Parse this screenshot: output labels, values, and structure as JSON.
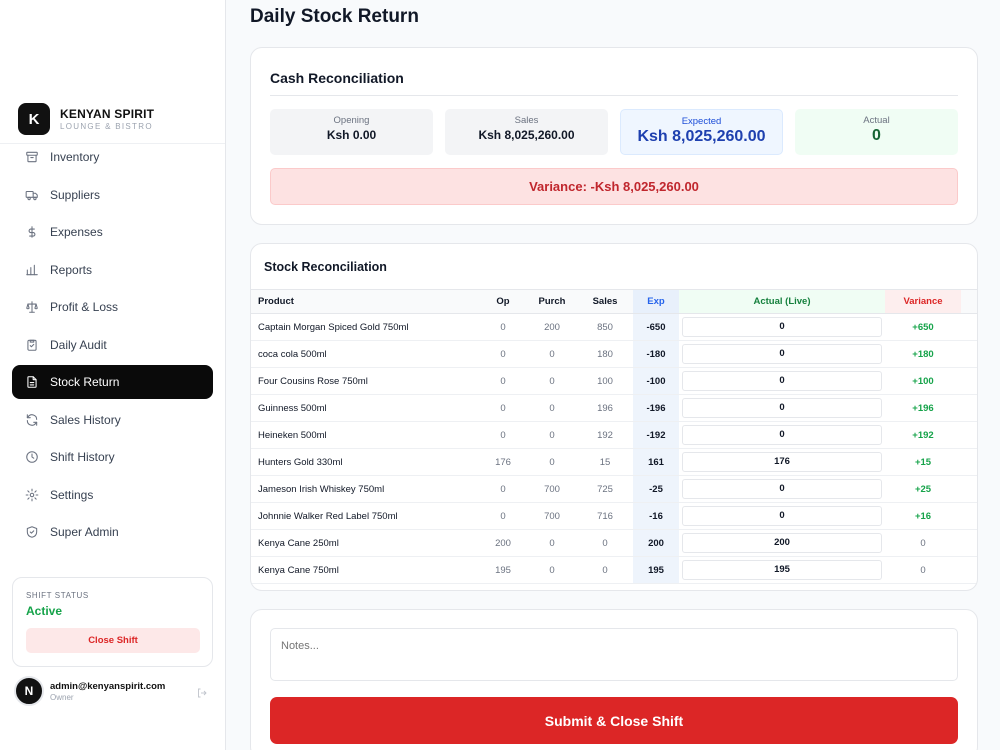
{
  "brand": {
    "initial": "K",
    "name": "KENYAN SPIRIT",
    "subtitle": "LOUNGE & BISTRO"
  },
  "nav": [
    {
      "label": "Inventory",
      "icon": "box-icon"
    },
    {
      "label": "Suppliers",
      "icon": "truck-icon"
    },
    {
      "label": "Expenses",
      "icon": "dollar-icon"
    },
    {
      "label": "Reports",
      "icon": "bar-chart-icon"
    },
    {
      "label": "Profit & Loss",
      "icon": "scale-icon"
    },
    {
      "label": "Daily Audit",
      "icon": "clipboard-icon"
    },
    {
      "label": "Stock Return",
      "icon": "file-icon",
      "active": true
    },
    {
      "label": "Sales History",
      "icon": "refresh-icon"
    },
    {
      "label": "Shift History",
      "icon": "clock-icon"
    },
    {
      "label": "Settings",
      "icon": "gear-icon"
    },
    {
      "label": "Super Admin",
      "icon": "shield-icon"
    }
  ],
  "shift": {
    "label": "SHIFT STATUS",
    "status": "Active",
    "close_label": "Close Shift"
  },
  "user": {
    "initial": "N",
    "email": "admin@kenyanspirit.com",
    "role": "Owner"
  },
  "page": {
    "title": "Daily Stock Return"
  },
  "cash": {
    "title": "Cash Reconciliation",
    "opening": {
      "label": "Opening",
      "value": "Ksh 0.00"
    },
    "sales": {
      "label": "Sales",
      "value": "Ksh 8,025,260.00"
    },
    "expected": {
      "label": "Expected",
      "value": "Ksh 8,025,260.00"
    },
    "actual": {
      "label": "Actual",
      "value": "0"
    },
    "variance": "Variance: -Ksh 8,025,260.00"
  },
  "stock": {
    "title": "Stock Reconciliation",
    "headers": {
      "product": "Product",
      "op": "Op",
      "purch": "Purch",
      "sales": "Sales",
      "exp": "Exp",
      "actual": "Actual (Live)",
      "variance": "Variance"
    },
    "rows": [
      {
        "product": "Captain Morgan Spiced Gold 750ml",
        "op": "0",
        "purch": "200",
        "sales": "850",
        "exp": "-650",
        "actual": "0",
        "variance": "+650"
      },
      {
        "product": "coca cola 500ml",
        "op": "0",
        "purch": "0",
        "sales": "180",
        "exp": "-180",
        "actual": "0",
        "variance": "+180"
      },
      {
        "product": "Four Cousins Rose 750ml",
        "op": "0",
        "purch": "0",
        "sales": "100",
        "exp": "-100",
        "actual": "0",
        "variance": "+100"
      },
      {
        "product": "Guinness 500ml",
        "op": "0",
        "purch": "0",
        "sales": "196",
        "exp": "-196",
        "actual": "0",
        "variance": "+196"
      },
      {
        "product": "Heineken 500ml",
        "op": "0",
        "purch": "0",
        "sales": "192",
        "exp": "-192",
        "actual": "0",
        "variance": "+192"
      },
      {
        "product": "Hunters Gold 330ml",
        "op": "176",
        "purch": "0",
        "sales": "15",
        "exp": "161",
        "actual": "176",
        "variance": "+15"
      },
      {
        "product": "Jameson Irish Whiskey 750ml",
        "op": "0",
        "purch": "700",
        "sales": "725",
        "exp": "-25",
        "actual": "0",
        "variance": "+25"
      },
      {
        "product": "Johnnie Walker Red Label 750ml",
        "op": "0",
        "purch": "700",
        "sales": "716",
        "exp": "-16",
        "actual": "0",
        "variance": "+16"
      },
      {
        "product": "Kenya Cane 250ml",
        "op": "200",
        "purch": "0",
        "sales": "0",
        "exp": "200",
        "actual": "200",
        "variance": "0"
      },
      {
        "product": "Kenya Cane 750ml",
        "op": "195",
        "purch": "0",
        "sales": "0",
        "exp": "195",
        "actual": "195",
        "variance": "0"
      }
    ]
  },
  "notes": {
    "placeholder": "Notes..."
  },
  "submit_label": "Submit & Close Shift"
}
